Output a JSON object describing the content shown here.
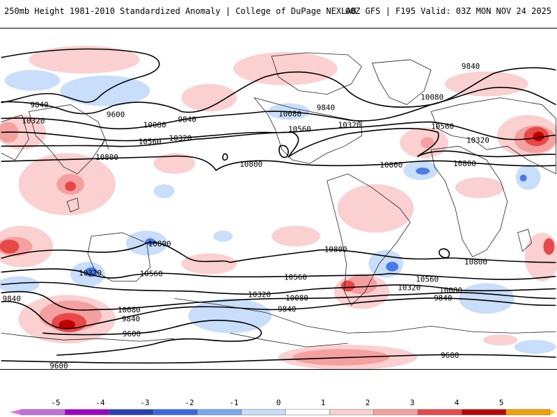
{
  "header": {
    "title": "250mb Height 1981-2010 Standardized Anomaly | College of DuPage NEXLAB",
    "run_info": "00Z GFS | F195 Valid: 03Z MON NOV 24 2025"
  },
  "contours": [
    {
      "id": "9600n",
      "label": "9600"
    },
    {
      "id": "9840n",
      "label": "9840"
    },
    {
      "id": "10080n",
      "label": "10080"
    },
    {
      "id": "10320n",
      "label": "10320"
    },
    {
      "id": "10560n",
      "label": "10560"
    },
    {
      "id": "10800n",
      "label": "10800"
    },
    {
      "id": "10800s",
      "label": "10800"
    },
    {
      "id": "10560s",
      "label": "10560"
    },
    {
      "id": "10320s",
      "label": "10320"
    },
    {
      "id": "10080s",
      "label": "10080"
    },
    {
      "id": "9840s",
      "label": "9840"
    },
    {
      "id": "9600s",
      "label": "9600"
    }
  ],
  "contour_labels": {
    "l9840a": "9840",
    "l9840b": "9840",
    "l9840c": "9840",
    "l9840d": "9840",
    "l9600a": "9600",
    "l10320a": "10320",
    "l10320b": "10320",
    "l10320c": "10320",
    "l10320d": "10320",
    "l10080a": "10080",
    "l10080b": "10080",
    "l10080c": "10080",
    "l10560a": "10560",
    "l10560b": "10560",
    "l10560c": "10560",
    "l10800a": "10800",
    "l10800b": "10800",
    "l10800c": "10800",
    "l10800d": "10800",
    "s10800a": "10800",
    "s10800b": "10800",
    "s10800c": "10800",
    "s10560a": "10560",
    "s10560b": "10560",
    "s10560c": "10560",
    "s10320a": "10320",
    "s10320b": "10320",
    "s10320c": "10320",
    "s10080a": "10080",
    "s10080b": "10080",
    "s10080c": "10080",
    "s9840a": "9840",
    "s9840b": "9840",
    "s9840c": "9840",
    "s9840d": "9840",
    "s9600a": "9600",
    "s9600b": "9600",
    "s9600c": "9600"
  },
  "legend": {
    "ticks": [
      "-5",
      "-4",
      "-3",
      "-2",
      "-1",
      "0",
      "1",
      "2",
      "3",
      "4",
      "5"
    ],
    "colors": [
      "#9e00c8",
      "#2a40b0",
      "#3a68e0",
      "#78a8f0",
      "#c8defa",
      "#ffffff",
      "#fbd0d0",
      "#f5a0a0",
      "#e84848",
      "#c00000",
      "#f5a000"
    ]
  }
}
